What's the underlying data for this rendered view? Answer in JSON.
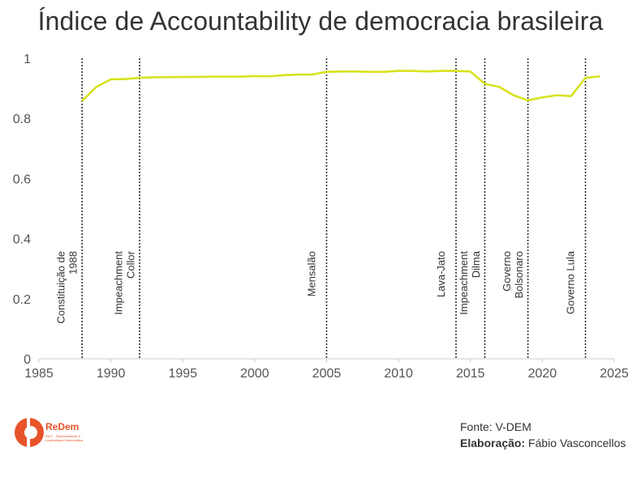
{
  "chart_data": {
    "type": "line",
    "title": "Índice de Accountability de democracia brasileira",
    "xlabel": "",
    "ylabel": "",
    "xlim": [
      1985,
      2025
    ],
    "ylim": [
      0,
      1
    ],
    "xticks": [
      "1985",
      "1990",
      "1995",
      "2000",
      "2005",
      "2010",
      "2015",
      "2020",
      "2025"
    ],
    "yticks": [
      "0",
      "0.2",
      "0.4",
      "0.6",
      "0.8",
      "1"
    ],
    "grid": false,
    "line_color": "#d8e21c",
    "series": [
      {
        "x": [
          1988,
          1989,
          1990,
          1991,
          1992,
          1993,
          1994,
          1995,
          1996,
          1997,
          1998,
          1999,
          2000,
          2001,
          2002,
          2003,
          2004,
          2005,
          2006,
          2007,
          2008,
          2009,
          2010,
          2011,
          2012,
          2013,
          2014,
          2015,
          2016,
          2017,
          2018,
          2019,
          2020,
          2021,
          2022,
          2023,
          2024
        ],
        "values": [
          0.858,
          0.905,
          0.93,
          0.931,
          0.935,
          0.937,
          0.937,
          0.938,
          0.938,
          0.939,
          0.939,
          0.939,
          0.941,
          0.94,
          0.944,
          0.946,
          0.946,
          0.955,
          0.956,
          0.956,
          0.955,
          0.955,
          0.958,
          0.958,
          0.956,
          0.958,
          0.958,
          0.956,
          0.915,
          0.905,
          0.877,
          0.86,
          0.87,
          0.877,
          0.874,
          0.935,
          0.94
        ]
      }
    ],
    "events": [
      {
        "x": 1988,
        "label": [
          "Constituição de",
          "1988"
        ]
      },
      {
        "x": 1992,
        "label": [
          "Impeachment",
          "Collor"
        ]
      },
      {
        "x": 2005,
        "label": [
          "Mensalão"
        ]
      },
      {
        "x": 2014,
        "label": [
          "Lava-Jato"
        ]
      },
      {
        "x": 2016,
        "label": [
          "Impeachment",
          "Dilma"
        ]
      },
      {
        "x": 2019,
        "label": [
          "Governo",
          "Bolsonaro"
        ]
      },
      {
        "x": 2023,
        "label": [
          "Governo Lula"
        ]
      }
    ]
  },
  "logo": {
    "name": "ReDem",
    "subtitle": "INCT - Representação e Legitimidade Democrática"
  },
  "credits": {
    "source": "Fonte: V-DEM",
    "author_label": "Elaboração:",
    "author": "Fábio Vasconcellos"
  }
}
